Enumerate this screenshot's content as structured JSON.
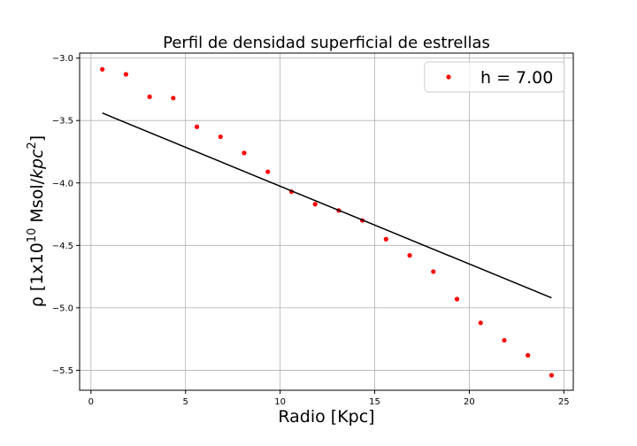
{
  "chart_data": {
    "type": "scatter",
    "title": "Perfil de densidad superficial de estrellas",
    "xlabel": "Radio [Kpc]",
    "ylabel": {
      "prefix": "ρ [1x10",
      "exponent": "10",
      "middle": " Msol/",
      "unit_var": "kpc",
      "unit_exp": "2",
      "suffix": "]"
    },
    "xlim": [
      -0.6,
      25.5
    ],
    "ylim": [
      -5.66,
      -2.96
    ],
    "xticks": [
      0,
      5,
      10,
      15,
      20,
      25
    ],
    "xtick_labels": [
      "0",
      "5",
      "10",
      "15",
      "20",
      "25"
    ],
    "yticks": [
      -3.0,
      -3.5,
      -4.0,
      -4.5,
      -5.0,
      -5.5
    ],
    "ytick_labels": [
      "−3.0",
      "−3.5",
      "−4.0",
      "−4.5",
      "−5.0",
      "−5.5"
    ],
    "grid": true,
    "legend_position": "top-right",
    "series": [
      {
        "name": "h = 7.00",
        "kind": "scatter",
        "color": "#ff0000",
        "x": [
          0.6,
          1.85,
          3.1,
          4.35,
          5.6,
          6.85,
          8.1,
          9.35,
          10.6,
          11.85,
          13.1,
          14.35,
          15.6,
          16.85,
          18.1,
          19.35,
          20.6,
          21.85,
          23.1,
          24.35
        ],
        "y": [
          -3.09,
          -3.13,
          -3.31,
          -3.32,
          -3.55,
          -3.63,
          -3.76,
          -3.91,
          -4.07,
          -4.17,
          -4.22,
          -4.3,
          -4.45,
          -4.58,
          -4.71,
          -4.93,
          -5.12,
          -5.26,
          -5.38,
          -5.54
        ]
      },
      {
        "kind": "line",
        "color": "#000000",
        "x": [
          0.6,
          24.35
        ],
        "y": [
          -3.44,
          -4.92
        ]
      }
    ]
  }
}
